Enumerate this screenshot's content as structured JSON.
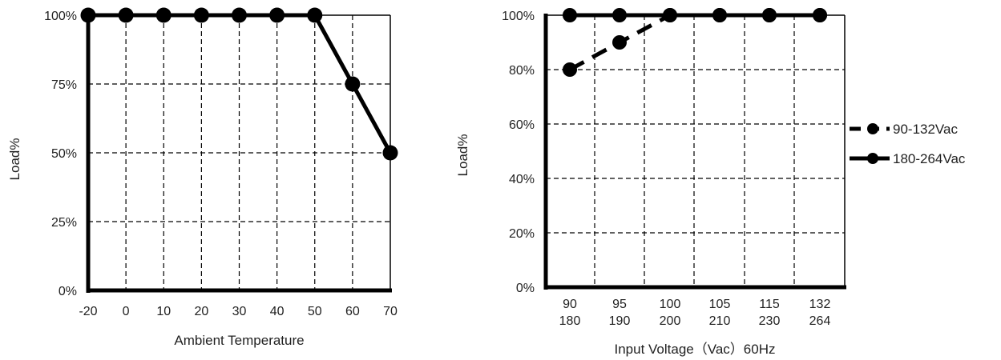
{
  "chart_data": [
    {
      "type": "line",
      "xlabel": "Ambient Temperature",
      "ylabel": "Load%",
      "x": [
        "-20",
        "0",
        "10",
        "20",
        "30",
        "40",
        "50",
        "60",
        "70"
      ],
      "y_ticks": [
        "0%",
        "25%",
        "50%",
        "75%",
        "100%"
      ],
      "ylim": [
        0,
        100
      ],
      "grid": true,
      "series": [
        {
          "values": [
            100,
            100,
            100,
            100,
            100,
            100,
            100,
            75,
            50
          ],
          "line_style": "solid",
          "marker": "circle",
          "color": "#000000"
        }
      ]
    },
    {
      "type": "line",
      "xlabel": "Input Voltage（Vac）60Hz",
      "ylabel": "Load%",
      "categories": [
        {
          "top": "90",
          "bottom": "180"
        },
        {
          "top": "95",
          "bottom": "190"
        },
        {
          "top": "100",
          "bottom": "200"
        },
        {
          "top": "105",
          "bottom": "210"
        },
        {
          "top": "115",
          "bottom": "230"
        },
        {
          "top": "132",
          "bottom": "264"
        }
      ],
      "y_ticks": [
        "0%",
        "20%",
        "40%",
        "60%",
        "80%",
        "100%"
      ],
      "ylim": [
        0,
        100
      ],
      "grid": true,
      "legend_position": "right",
      "series": [
        {
          "name": "90-132Vac",
          "values": [
            80,
            90,
            100,
            100,
            100,
            100
          ],
          "line_style": "dashed",
          "marker": "circle",
          "color": "#000000"
        },
        {
          "name": "180-264Vac",
          "values": [
            100,
            100,
            100,
            100,
            100,
            100
          ],
          "line_style": "solid",
          "marker": "circle",
          "color": "#000000"
        }
      ]
    }
  ]
}
